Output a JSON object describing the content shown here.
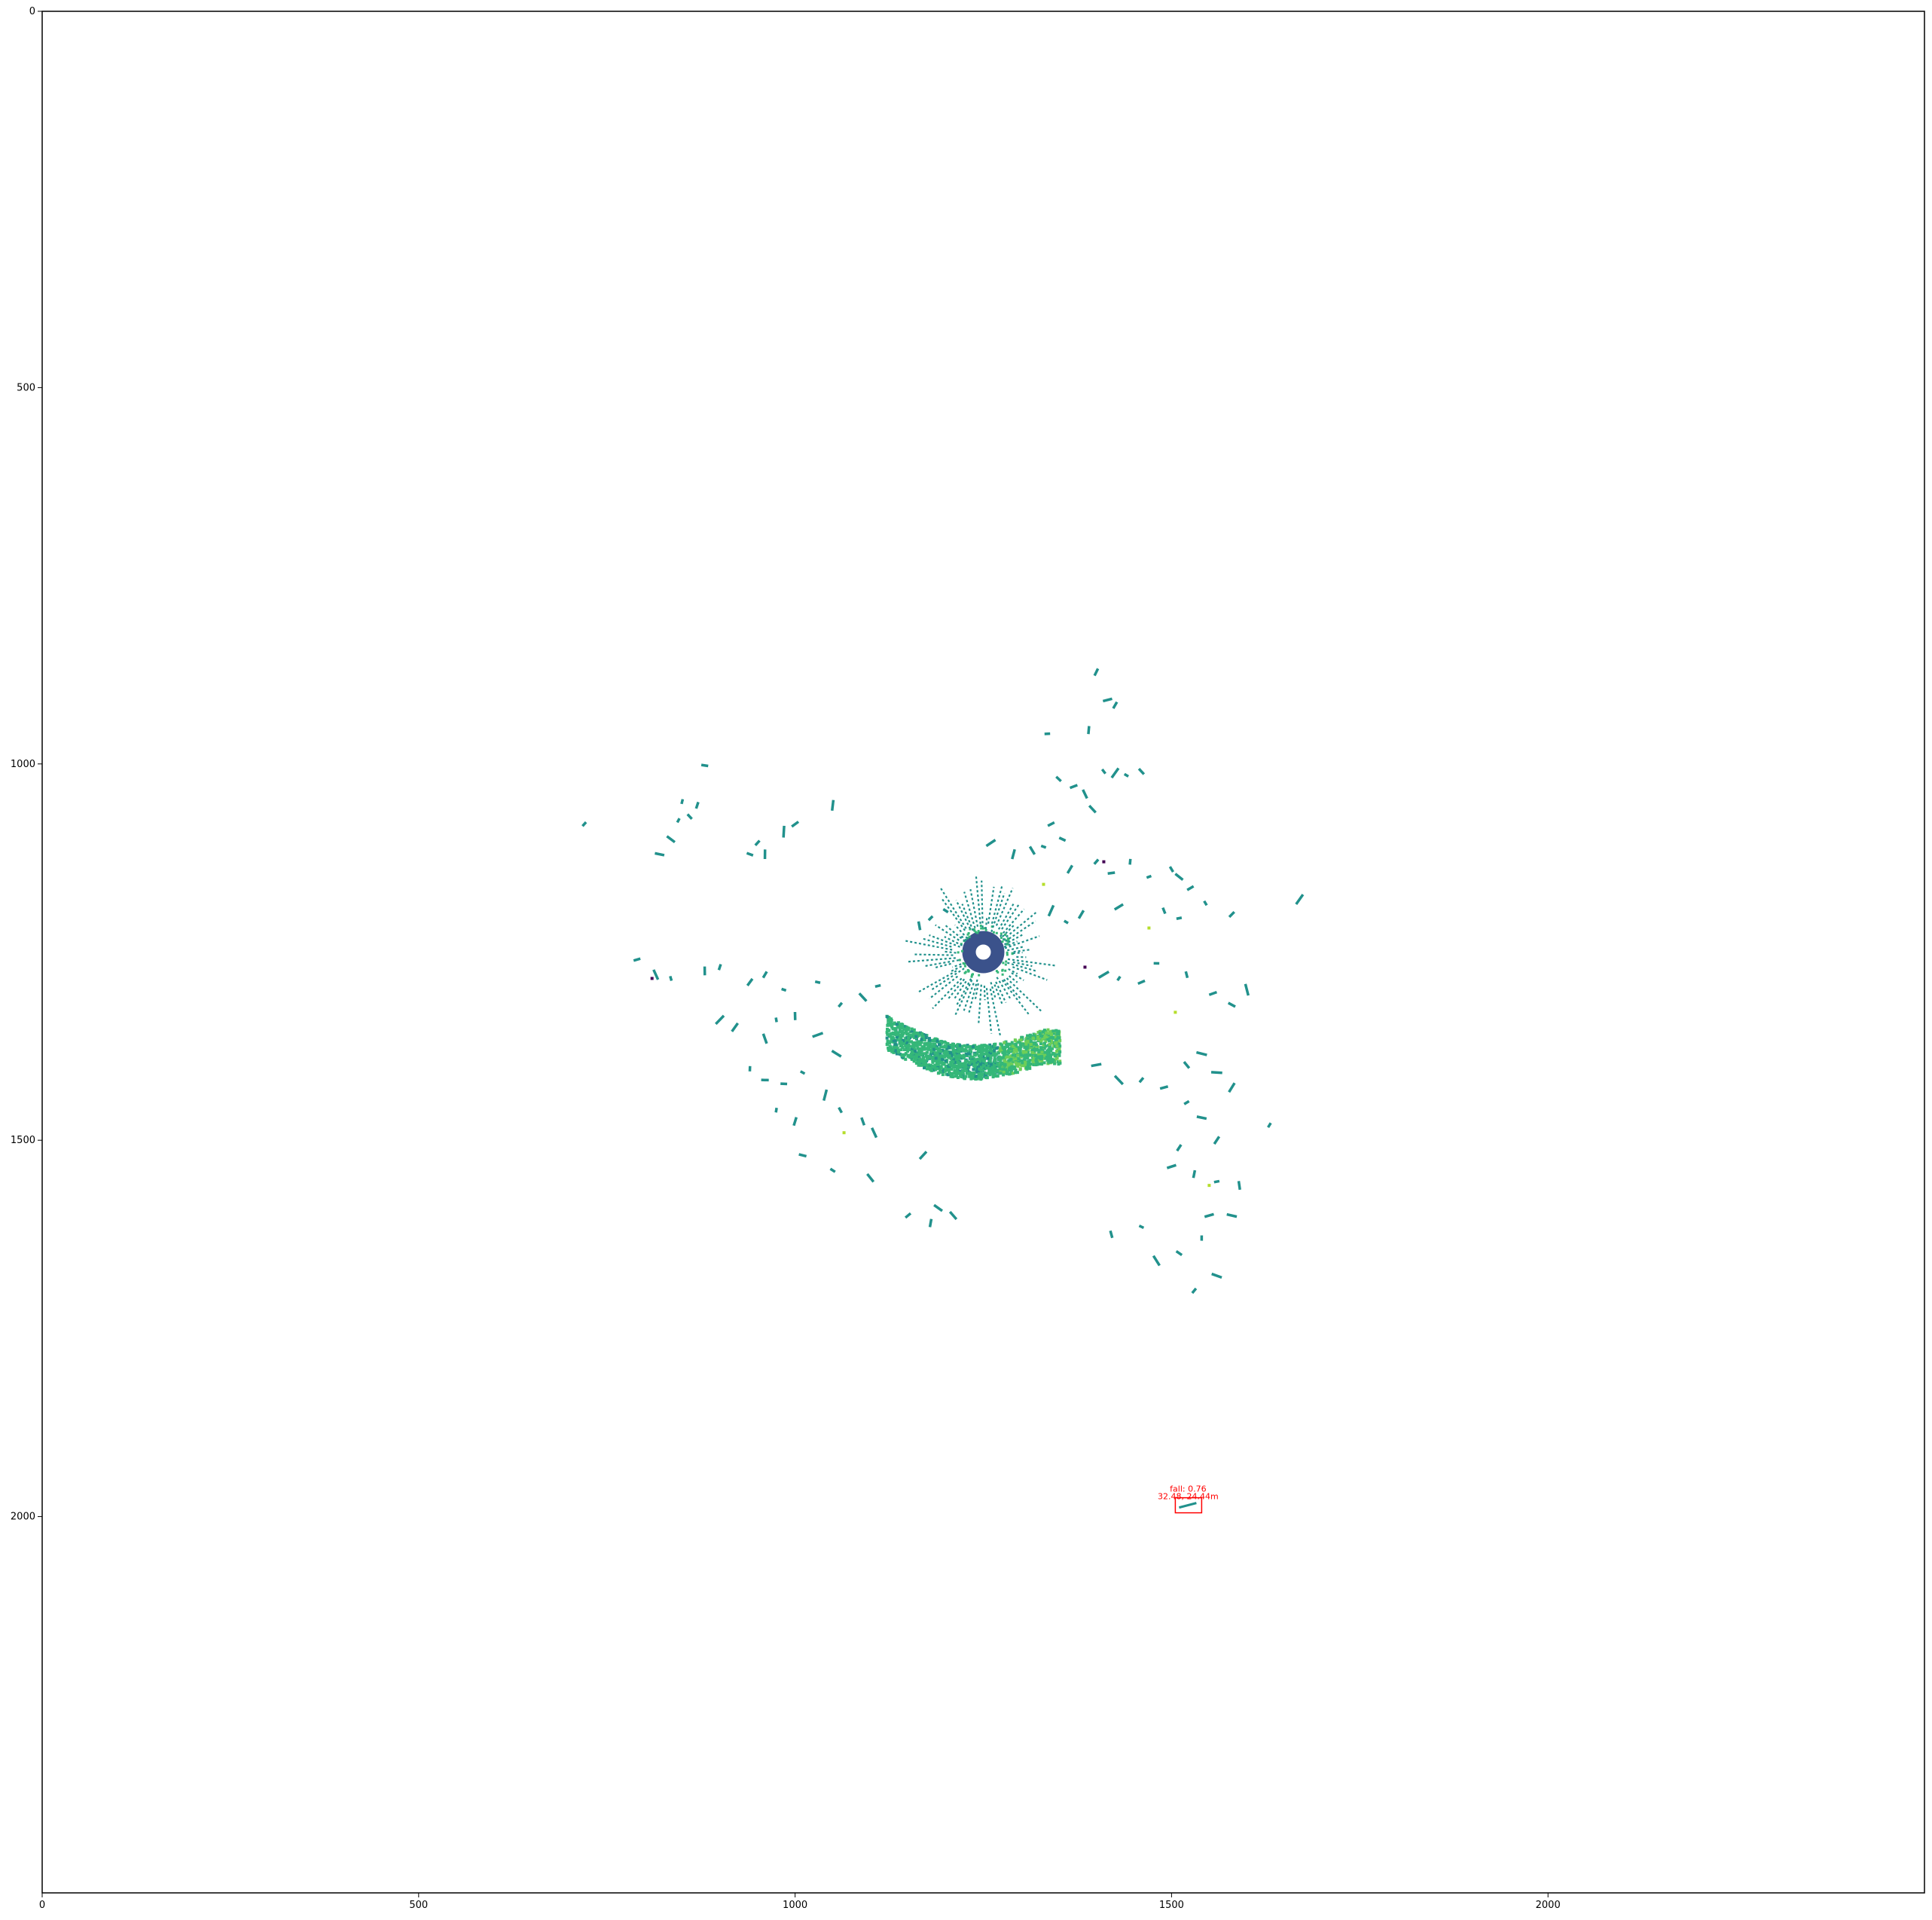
{
  "chart_data": {
    "type": "scatter",
    "title": "",
    "xlabel": "",
    "ylabel": "",
    "xlim": [
      0,
      2500
    ],
    "ylim": [
      2500,
      0
    ],
    "y_inverted": true,
    "grid": false,
    "x_ticks": [
      0,
      500,
      1000,
      1500,
      2000
    ],
    "y_ticks": [
      0,
      500,
      1000,
      1500,
      2000
    ],
    "x_tick_labels": [
      "0",
      "500",
      "1000",
      "1500",
      "2000"
    ],
    "y_tick_labels": [
      "0",
      "500",
      "1000",
      "1500",
      "2000"
    ],
    "colormap": "viridis",
    "colors": {
      "teal": "#21918c",
      "blue": "#3b528b",
      "green": "#35b779",
      "lime": "#6ece58",
      "yellow": "#b5de2b",
      "purple": "#440154",
      "detection": "#ff0000"
    },
    "clusters": [
      {
        "name": "center-ring",
        "kind": "ring",
        "cx": 1250,
        "cy": 1250,
        "r_inner": 10,
        "r_outer": 28,
        "color": "blue"
      },
      {
        "name": "center-spokes",
        "kind": "spokes",
        "cx": 1250,
        "cy": 1255,
        "r_min": 30,
        "r_max": 95,
        "count": 70,
        "color": "teal"
      },
      {
        "name": "ground-band",
        "kind": "band",
        "x_start": 1120,
        "x_end": 1350,
        "y_center": 1375,
        "thickness": 45,
        "sag": 30,
        "color": "green"
      }
    ],
    "points": [
      [
        1400,
        878
      ],
      [
        1415,
        915
      ],
      [
        1425,
        922
      ],
      [
        1335,
        960
      ],
      [
        1390,
        955
      ],
      [
        880,
        1002
      ],
      [
        1410,
        1010
      ],
      [
        1425,
        1012
      ],
      [
        1440,
        1015
      ],
      [
        1460,
        1010
      ],
      [
        1350,
        1020
      ],
      [
        1370,
        1030
      ],
      [
        1385,
        1040
      ],
      [
        850,
        1050
      ],
      [
        870,
        1055
      ],
      [
        860,
        1070
      ],
      [
        1000,
        1080
      ],
      [
        1050,
        1055
      ],
      [
        1395,
        1060
      ],
      [
        1340,
        1080
      ],
      [
        720,
        1080
      ],
      [
        845,
        1075
      ],
      [
        835,
        1100
      ],
      [
        820,
        1120
      ],
      [
        950,
        1105
      ],
      [
        940,
        1120
      ],
      [
        960,
        1120
      ],
      [
        985,
        1090
      ],
      [
        1260,
        1105
      ],
      [
        1290,
        1120
      ],
      [
        1315,
        1115
      ],
      [
        1330,
        1110
      ],
      [
        1355,
        1100
      ],
      [
        1365,
        1140
      ],
      [
        1400,
        1130
      ],
      [
        1420,
        1145
      ],
      [
        1445,
        1130
      ],
      [
        1470,
        1150
      ],
      [
        1500,
        1140
      ],
      [
        1510,
        1150
      ],
      [
        1525,
        1165
      ],
      [
        1545,
        1185
      ],
      [
        1670,
        1180
      ],
      [
        1430,
        1190
      ],
      [
        1490,
        1195
      ],
      [
        1510,
        1205
      ],
      [
        1580,
        1200
      ],
      [
        1340,
        1195
      ],
      [
        1360,
        1210
      ],
      [
        1380,
        1200
      ],
      [
        1200,
        1195
      ],
      [
        1180,
        1205
      ],
      [
        1165,
        1215
      ],
      [
        790,
        1260
      ],
      [
        815,
        1280
      ],
      [
        835,
        1285
      ],
      [
        880,
        1275
      ],
      [
        900,
        1270
      ],
      [
        940,
        1290
      ],
      [
        960,
        1280
      ],
      [
        985,
        1300
      ],
      [
        1030,
        1290
      ],
      [
        1060,
        1320
      ],
      [
        1090,
        1310
      ],
      [
        1110,
        1295
      ],
      [
        1410,
        1280
      ],
      [
        1430,
        1285
      ],
      [
        1460,
        1290
      ],
      [
        1480,
        1265
      ],
      [
        1520,
        1280
      ],
      [
        1555,
        1305
      ],
      [
        1580,
        1320
      ],
      [
        1600,
        1300
      ],
      [
        900,
        1340
      ],
      [
        920,
        1350
      ],
      [
        960,
        1365
      ],
      [
        975,
        1340
      ],
      [
        1000,
        1335
      ],
      [
        1030,
        1360
      ],
      [
        1055,
        1385
      ],
      [
        940,
        1405
      ],
      [
        960,
        1420
      ],
      [
        985,
        1425
      ],
      [
        1010,
        1410
      ],
      [
        1040,
        1440
      ],
      [
        1060,
        1460
      ],
      [
        1090,
        1475
      ],
      [
        1105,
        1490
      ],
      [
        975,
        1460
      ],
      [
        1000,
        1475
      ],
      [
        1010,
        1520
      ],
      [
        1050,
        1540
      ],
      [
        1100,
        1550
      ],
      [
        1170,
        1520
      ],
      [
        1400,
        1400
      ],
      [
        1430,
        1420
      ],
      [
        1460,
        1420
      ],
      [
        1490,
        1430
      ],
      [
        1520,
        1400
      ],
      [
        1540,
        1385
      ],
      [
        1560,
        1410
      ],
      [
        1580,
        1430
      ],
      [
        1520,
        1450
      ],
      [
        1540,
        1470
      ],
      [
        1560,
        1500
      ],
      [
        1510,
        1510
      ],
      [
        1500,
        1535
      ],
      [
        1530,
        1545
      ],
      [
        1560,
        1555
      ],
      [
        1590,
        1560
      ],
      [
        1580,
        1600
      ],
      [
        1550,
        1600
      ],
      [
        1540,
        1630
      ],
      [
        1510,
        1650
      ],
      [
        1480,
        1660
      ],
      [
        1560,
        1680
      ],
      [
        1530,
        1700
      ],
      [
        1420,
        1625
      ],
      [
        1460,
        1615
      ],
      [
        1630,
        1480
      ],
      [
        1190,
        1590
      ],
      [
        1210,
        1600
      ],
      [
        1180,
        1610
      ],
      [
        1150,
        1600
      ]
    ],
    "accent_points": [
      {
        "x": 1410,
        "y": 1130,
        "color": "purple"
      },
      {
        "x": 1385,
        "y": 1270,
        "color": "purple"
      },
      {
        "x": 810,
        "y": 1285,
        "color": "purple"
      },
      {
        "x": 1470,
        "y": 1218,
        "color": "yellow"
      },
      {
        "x": 1065,
        "y": 1490,
        "color": "yellow"
      },
      {
        "x": 1550,
        "y": 1560,
        "color": "yellow"
      },
      {
        "x": 1505,
        "y": 1330,
        "color": "yellow"
      },
      {
        "x": 1330,
        "y": 1160,
        "color": "yellow"
      }
    ],
    "detection_box": {
      "x0": 1505,
      "x1": 1540,
      "y0": 1975,
      "y1": 1995,
      "color": "detection"
    },
    "detection_segment": {
      "x0": 1510,
      "y0": 1988,
      "x1": 1533,
      "y1": 1982
    },
    "annotations": [
      {
        "name": "detection-class-label",
        "text": "fall: 0.76",
        "x": 1522,
        "y": 1967
      },
      {
        "name": "detection-position-label",
        "text": "32.48, 24.44m",
        "x": 1522,
        "y": 1977
      }
    ]
  }
}
